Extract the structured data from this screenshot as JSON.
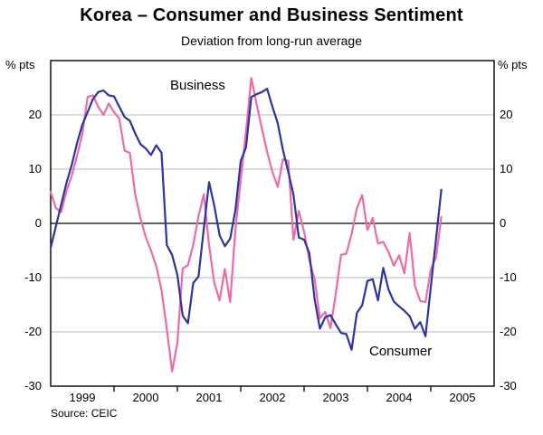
{
  "title": "Korea – Consumer and Business Sentiment",
  "subtitle": "Deviation from long-run average",
  "source": "Source: CEIC",
  "axis": {
    "unit_left": "% pts",
    "unit_right": "% pts",
    "y_ticks": [
      20,
      10,
      0,
      -10,
      -20,
      -30
    ],
    "x_labels": [
      "1999",
      "2000",
      "2001",
      "2002",
      "2003",
      "2004",
      "2005"
    ]
  },
  "labels": {
    "business": "Business",
    "consumer": "Consumer"
  },
  "colors": {
    "business": "#ee6ba6",
    "consumer": "#2b34a0",
    "grid": "#b4bac0",
    "axis": "#000000"
  },
  "chart_data": {
    "type": "line",
    "frequency": "monthly",
    "x_start": "Jan 1999",
    "x_end": "Mar 2005",
    "x_axis_years": [
      "1999",
      "2000",
      "2001",
      "2002",
      "2003",
      "2004",
      "2005"
    ],
    "ylabel": "% pts",
    "ylim": [
      -30,
      30
    ],
    "gridlines": [
      20,
      10,
      -10,
      -20
    ],
    "zero_line": true,
    "legend_position": "inline-annotations",
    "series": [
      {
        "name": "Business",
        "color": "#ee6ba6",
        "values": [
          5.8,
          2.8,
          2.1,
          6.0,
          8.8,
          12.5,
          16.5,
          23.3,
          23.6,
          21.5,
          20.0,
          22.1,
          20.5,
          19.3,
          13.4,
          13.0,
          5.4,
          1.0,
          -2.5,
          -5.0,
          -7.9,
          -12.3,
          -19.5,
          -27.3,
          -22.0,
          -8.3,
          -7.7,
          -4.0,
          1.3,
          5.4,
          -4.0,
          -11.0,
          -14.2,
          -8.4,
          -14.5,
          -1.0,
          8.0,
          17.0,
          26.8,
          22.0,
          17.5,
          13.2,
          9.5,
          6.7,
          11.8,
          11.5,
          -3.0,
          2.3,
          -1.5,
          -6.8,
          -10.3,
          -17.5,
          -16.3,
          -19.3,
          -13.0,
          -5.8,
          -5.6,
          -2.0,
          2.8,
          5.2,
          -1.2,
          1.0,
          -3.7,
          -3.4,
          -5.3,
          -7.8,
          -5.9,
          -9.2,
          -1.8,
          -11.5,
          -14.3,
          -14.5,
          -8.5,
          -6.2,
          1.2
        ]
      },
      {
        "name": "Consumer",
        "color": "#2b34a0",
        "values": [
          -4.5,
          -0.5,
          3.5,
          7.5,
          10.8,
          14.8,
          18.2,
          20.5,
          22.9,
          24.2,
          24.5,
          23.6,
          23.4,
          21.5,
          19.6,
          18.9,
          16.6,
          14.6,
          13.8,
          12.6,
          14.4,
          13.0,
          -4.0,
          -5.8,
          -9.5,
          -17.0,
          -18.4,
          -11.0,
          -9.8,
          -1.0,
          7.6,
          3.2,
          -2.2,
          -4.2,
          -2.8,
          2.5,
          11.5,
          14.0,
          23.3,
          23.8,
          24.2,
          24.8,
          21.5,
          18.5,
          13.5,
          9.5,
          5.2,
          -2.6,
          -3.0,
          -5.5,
          -14.0,
          -19.4,
          -17.3,
          -16.9,
          -18.6,
          -20.2,
          -20.4,
          -23.3,
          -16.5,
          -15.1,
          -10.6,
          -10.3,
          -14.2,
          -8.2,
          -12.2,
          -14.4,
          -15.3,
          -16.1,
          -17.1,
          -19.4,
          -18.2,
          -20.8,
          -11.8,
          -2.8,
          6.2
        ]
      }
    ]
  }
}
